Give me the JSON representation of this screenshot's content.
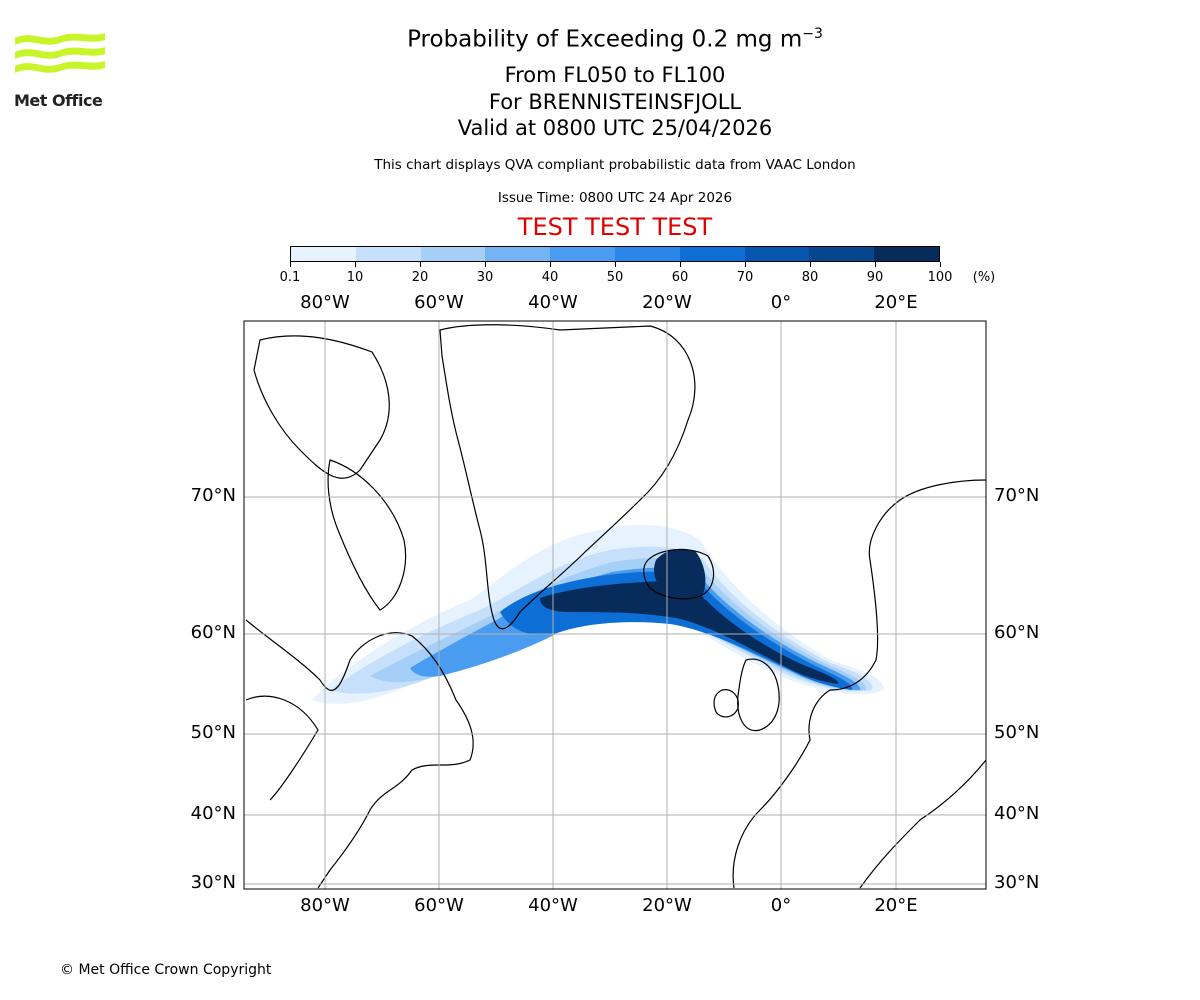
{
  "logo": {
    "text": "Met Office",
    "color": "#c8f52a"
  },
  "header": {
    "title_main": "Probability of Exceeding 0.2 mg m",
    "title_exponent": "−3",
    "levels": "From FL050 to FL100",
    "volcano": "For BRENNISTEINSFJOLL",
    "valid": "Valid at 0800 UTC 25/04/2026",
    "subtitle": "This chart displays QVA compliant probabilistic data from VAAC London",
    "issue_time": "Issue Time: 0800 UTC 24 Apr 2026",
    "test_banner": "TEST TEST TEST",
    "test_color": "#e00000"
  },
  "colorbar": {
    "ticks": [
      "0.1",
      "10",
      "20",
      "30",
      "40",
      "50",
      "60",
      "70",
      "80",
      "90",
      "100"
    ],
    "unit": "(%)",
    "colors": [
      "#e6f2fe",
      "#c6e0fb",
      "#a6cff8",
      "#75b4f3",
      "#4a9cf0",
      "#2a86e8",
      "#0d6ed6",
      "#0656b0",
      "#05468f",
      "#072c5c"
    ]
  },
  "map": {
    "lon_labels": [
      "80°W",
      "60°W",
      "40°W",
      "20°W",
      "0°",
      "20°E"
    ],
    "lat_labels": [
      "70°N",
      "60°N",
      "50°N",
      "40°N",
      "30°N"
    ]
  },
  "footer": {
    "copyright": "© Met Office Crown Copyright"
  }
}
